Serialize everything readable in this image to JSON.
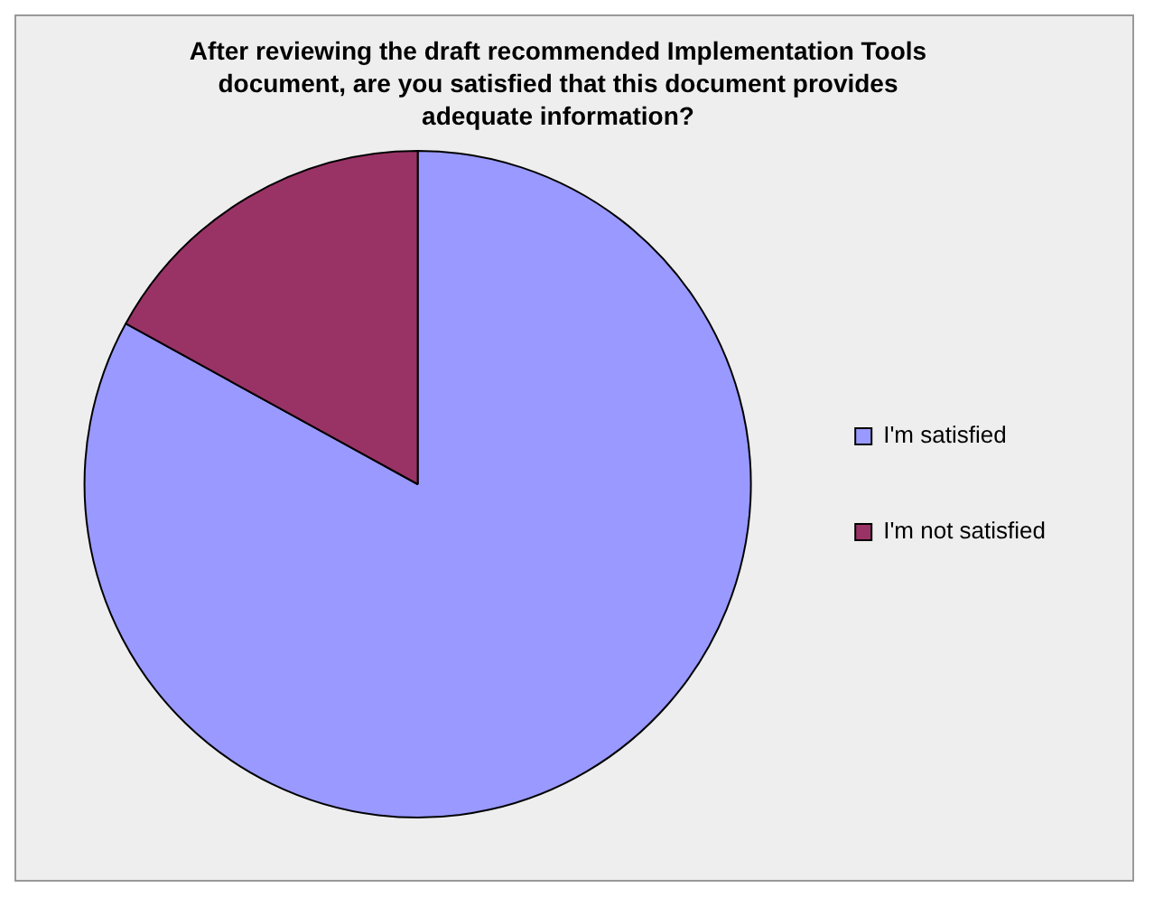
{
  "chart_data": {
    "type": "pie",
    "title": "After reviewing the draft recommended Implementation Tools document, are you satisfied that this document provides adequate information?",
    "categories": [
      "I'm satisfied",
      "I'm not satisfied"
    ],
    "values": [
      83,
      17
    ],
    "colors": [
      "#9999ff",
      "#993366"
    ],
    "legend": "right"
  }
}
